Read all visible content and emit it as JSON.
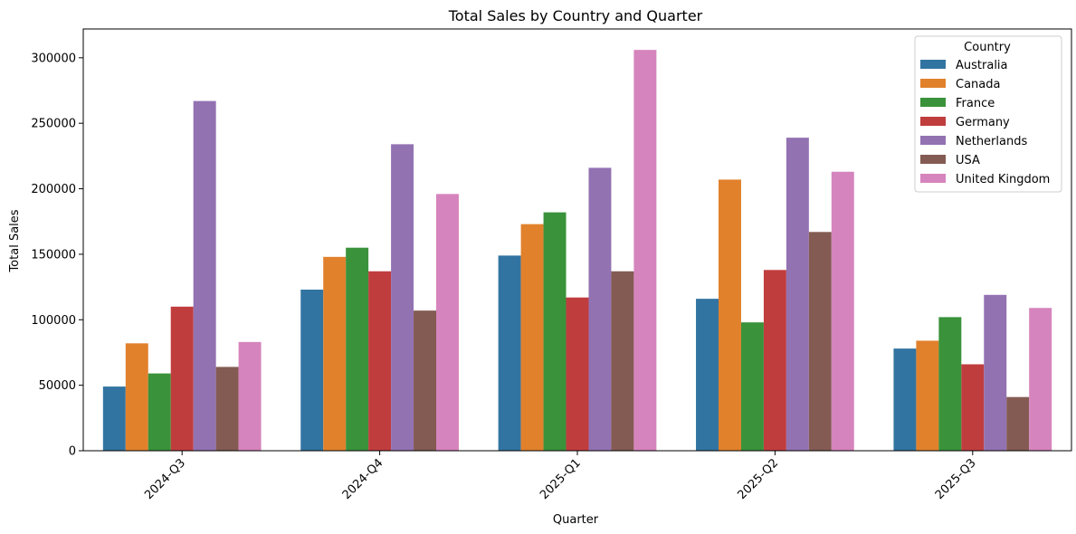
{
  "chart_data": {
    "type": "bar",
    "title": "Total Sales by Country and Quarter",
    "xlabel": "Quarter",
    "ylabel": "Total Sales",
    "categories": [
      "2024-Q3",
      "2024-Q4",
      "2025-Q1",
      "2025-Q2",
      "2025-Q3"
    ],
    "ylim": [
      0,
      322000
    ],
    "yticks": [
      0,
      50000,
      100000,
      150000,
      200000,
      250000,
      300000
    ],
    "grid": false,
    "legend": {
      "title": "Country",
      "placement": "top-right"
    },
    "series": [
      {
        "name": "Australia",
        "color": "#3274a1",
        "values": [
          49000,
          123000,
          149000,
          116000,
          78000
        ]
      },
      {
        "name": "Canada",
        "color": "#e1812c",
        "values": [
          82000,
          148000,
          173000,
          207000,
          84000
        ]
      },
      {
        "name": "France",
        "color": "#3a923a",
        "values": [
          59000,
          155000,
          182000,
          98000,
          102000
        ]
      },
      {
        "name": "Germany",
        "color": "#c03d3e",
        "values": [
          110000,
          137000,
          117000,
          138000,
          66000
        ]
      },
      {
        "name": "Netherlands",
        "color": "#9372b2",
        "values": [
          267000,
          234000,
          216000,
          239000,
          119000
        ]
      },
      {
        "name": "USA",
        "color": "#845b53",
        "values": [
          64000,
          107000,
          137000,
          167000,
          41000
        ]
      },
      {
        "name": "United Kingdom",
        "color": "#d684bd",
        "values": [
          83000,
          196000,
          306000,
          213000,
          109000
        ]
      }
    ]
  }
}
